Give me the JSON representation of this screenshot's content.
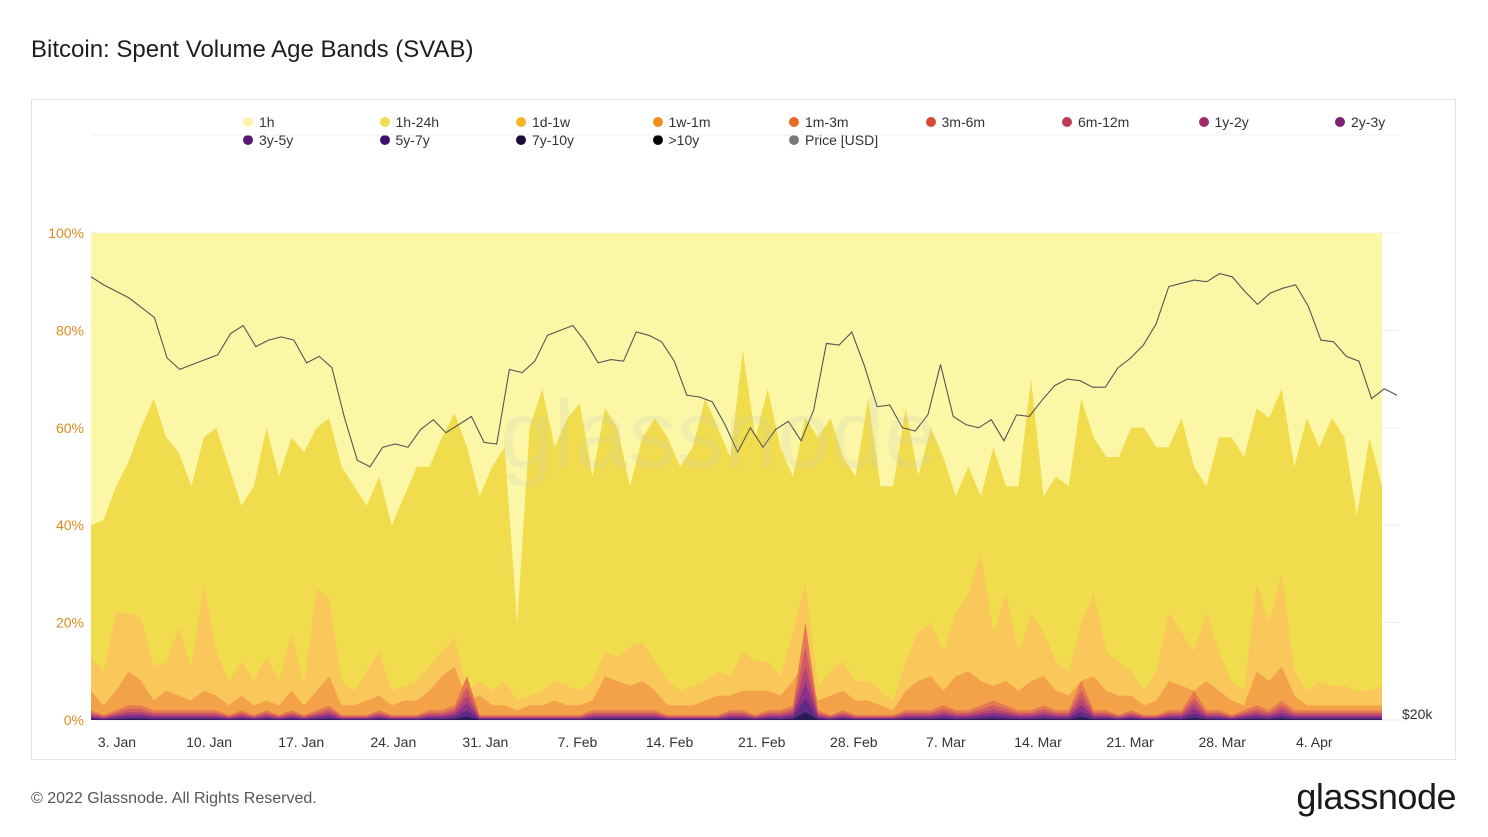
{
  "title": "Bitcoin: Spent Volume Age Bands (SVAB)",
  "footer": "© 2022 Glassnode. All Rights Reserved.",
  "brand": "glassnode",
  "watermark": "glassnode",
  "legend": [
    {
      "label": "1h",
      "color": "#fbf7a6"
    },
    {
      "label": "1h-24h",
      "color": "#f1dc4d"
    },
    {
      "label": "1d-1w",
      "color": "#f6b723"
    },
    {
      "label": "1w-1m",
      "color": "#f28f1b"
    },
    {
      "label": "1m-3m",
      "color": "#e86a25"
    },
    {
      "label": "3m-6m",
      "color": "#d94b35"
    },
    {
      "label": "6m-12m",
      "color": "#c13b54"
    },
    {
      "label": "1y-2y",
      "color": "#a22c68"
    },
    {
      "label": "2y-3y",
      "color": "#7d2174"
    },
    {
      "label": "3y-5y",
      "color": "#5a1777"
    },
    {
      "label": "5y-7y",
      "color": "#3a1269"
    },
    {
      "label": "7y-10y",
      "color": "#1b0c37"
    },
    {
      "label": ">10y",
      "color": "#050308"
    },
    {
      "label": "Price [USD]",
      "color": "#7a7a7a"
    }
  ],
  "chart_data": {
    "type": "area",
    "stacked": true,
    "normalized": true,
    "x_ticks": [
      "3. Jan",
      "10. Jan",
      "17. Jan",
      "24. Jan",
      "31. Jan",
      "7. Feb",
      "14. Feb",
      "21. Feb",
      "28. Feb",
      "7. Mar",
      "14. Mar",
      "21. Mar",
      "28. Mar",
      "4. Apr"
    ],
    "y_ticks": [
      "0%",
      "20%",
      "40%",
      "60%",
      "80%",
      "100%"
    ],
    "ylim": [
      0,
      100
    ],
    "right_axis_label": "$20k",
    "x_start": "2022-01-02",
    "top_1h_24h_pct": [
      40,
      41,
      48,
      53,
      60,
      66,
      58,
      55,
      48,
      58,
      60,
      52,
      44,
      48,
      60,
      50,
      58,
      55,
      60,
      62,
      52,
      48,
      44,
      50,
      40,
      46,
      52,
      52,
      58,
      63,
      56,
      46,
      52,
      56,
      20,
      60,
      68,
      56,
      62,
      65,
      50,
      64,
      60,
      48,
      58,
      62,
      58,
      52,
      56,
      66,
      60,
      54,
      76,
      58,
      68,
      56,
      50,
      62,
      58,
      62,
      54,
      50,
      66,
      48,
      48,
      64,
      50,
      60,
      54,
      46,
      52,
      46,
      56,
      48,
      48,
      70,
      46,
      50,
      48,
      66,
      58,
      54,
      54,
      60,
      60,
      56,
      56,
      62,
      52,
      48,
      58,
      58,
      54,
      64,
      62,
      68,
      52,
      62,
      56,
      62,
      58,
      42,
      58,
      48
    ],
    "top_1d_1w_pct": [
      13,
      10,
      22,
      22,
      21,
      11,
      12,
      19,
      11,
      28,
      14,
      8,
      12,
      8,
      13,
      8,
      18,
      7,
      27,
      25,
      8,
      6,
      10,
      14,
      6,
      7,
      8,
      11,
      14,
      17,
      6,
      8,
      6,
      8,
      4,
      5,
      6,
      8,
      7,
      6,
      8,
      14,
      13,
      15,
      16,
      12,
      8,
      6,
      7,
      8,
      10,
      9,
      14,
      12,
      12,
      9,
      18,
      28,
      7,
      10,
      12,
      8,
      8,
      6,
      4,
      12,
      18,
      20,
      14,
      22,
      26,
      34,
      18,
      26,
      14,
      22,
      18,
      12,
      10,
      20,
      26,
      14,
      12,
      10,
      6,
      10,
      22,
      18,
      14,
      22,
      14,
      8,
      6,
      28,
      20,
      30,
      10,
      6,
      8,
      7,
      7,
      6,
      6,
      7
    ],
    "top_1w_1m_pct": [
      6,
      3,
      6,
      10,
      8,
      4,
      6,
      5,
      4,
      6,
      5,
      3,
      5,
      3,
      4,
      3,
      6,
      3,
      6,
      9,
      3,
      3,
      4,
      5,
      3,
      4,
      4,
      6,
      9,
      11,
      4,
      5,
      3,
      3,
      2,
      3,
      3,
      4,
      3,
      3,
      4,
      9,
      8,
      7,
      8,
      6,
      3,
      3,
      3,
      4,
      5,
      5,
      6,
      6,
      6,
      5,
      8,
      12,
      4,
      5,
      6,
      4,
      4,
      3,
      2,
      6,
      8,
      9,
      6,
      9,
      10,
      8,
      7,
      8,
      6,
      8,
      9,
      6,
      5,
      8,
      9,
      6,
      5,
      5,
      3,
      4,
      8,
      7,
      6,
      8,
      6,
      4,
      3,
      10,
      8,
      11,
      5,
      3,
      3,
      3,
      3,
      3,
      3,
      3
    ],
    "top_older_pct": [
      2,
      1,
      2,
      3,
      3,
      2,
      2,
      2,
      2,
      2,
      2,
      1,
      2,
      1,
      2,
      1,
      2,
      1,
      2,
      3,
      1,
      1,
      1,
      2,
      1,
      1,
      1,
      2,
      2,
      3,
      9,
      1,
      1,
      1,
      1,
      1,
      1,
      1,
      1,
      1,
      2,
      2,
      2,
      2,
      2,
      2,
      1,
      1,
      1,
      1,
      1,
      2,
      2,
      1,
      2,
      2,
      3,
      20,
      2,
      1,
      2,
      1,
      1,
      1,
      1,
      2,
      2,
      2,
      3,
      2,
      2,
      3,
      4,
      3,
      2,
      2,
      3,
      2,
      2,
      8,
      2,
      2,
      1,
      2,
      1,
      1,
      2,
      2,
      6,
      2,
      2,
      1,
      2,
      3,
      2,
      4,
      2,
      2,
      2,
      2,
      2,
      2,
      2,
      2
    ],
    "price_usd": [
      47300,
      46800,
      46400,
      46000,
      45400,
      44800,
      42300,
      41600,
      41900,
      42200,
      42500,
      43800,
      44300,
      43000,
      43400,
      43600,
      43400,
      42000,
      42400,
      41700,
      38600,
      36000,
      35600,
      36800,
      37000,
      36800,
      37900,
      38500,
      37700,
      38200,
      38700,
      37100,
      37000,
      41600,
      41400,
      42100,
      43700,
      44000,
      44300,
      43300,
      42000,
      42200,
      42100,
      43900,
      43700,
      43300,
      42100,
      40000,
      39900,
      39600,
      38200,
      36500,
      38000,
      36800,
      37900,
      38400,
      37200,
      39100,
      43200,
      43100,
      43900,
      41800,
      39300,
      39400,
      38000,
      37800,
      38800,
      41900,
      38700,
      38200,
      38000,
      38500,
      37200,
      38800,
      38700,
      39700,
      40600,
      41000,
      40900,
      40500,
      40500,
      41700,
      42300,
      43100,
      44400,
      46700,
      46900,
      47100,
      47000,
      47500,
      47300,
      46400,
      45600,
      46300,
      46600,
      46800,
      45500,
      43400,
      43300,
      42400,
      42100,
      39800,
      40400,
      40000
    ]
  }
}
